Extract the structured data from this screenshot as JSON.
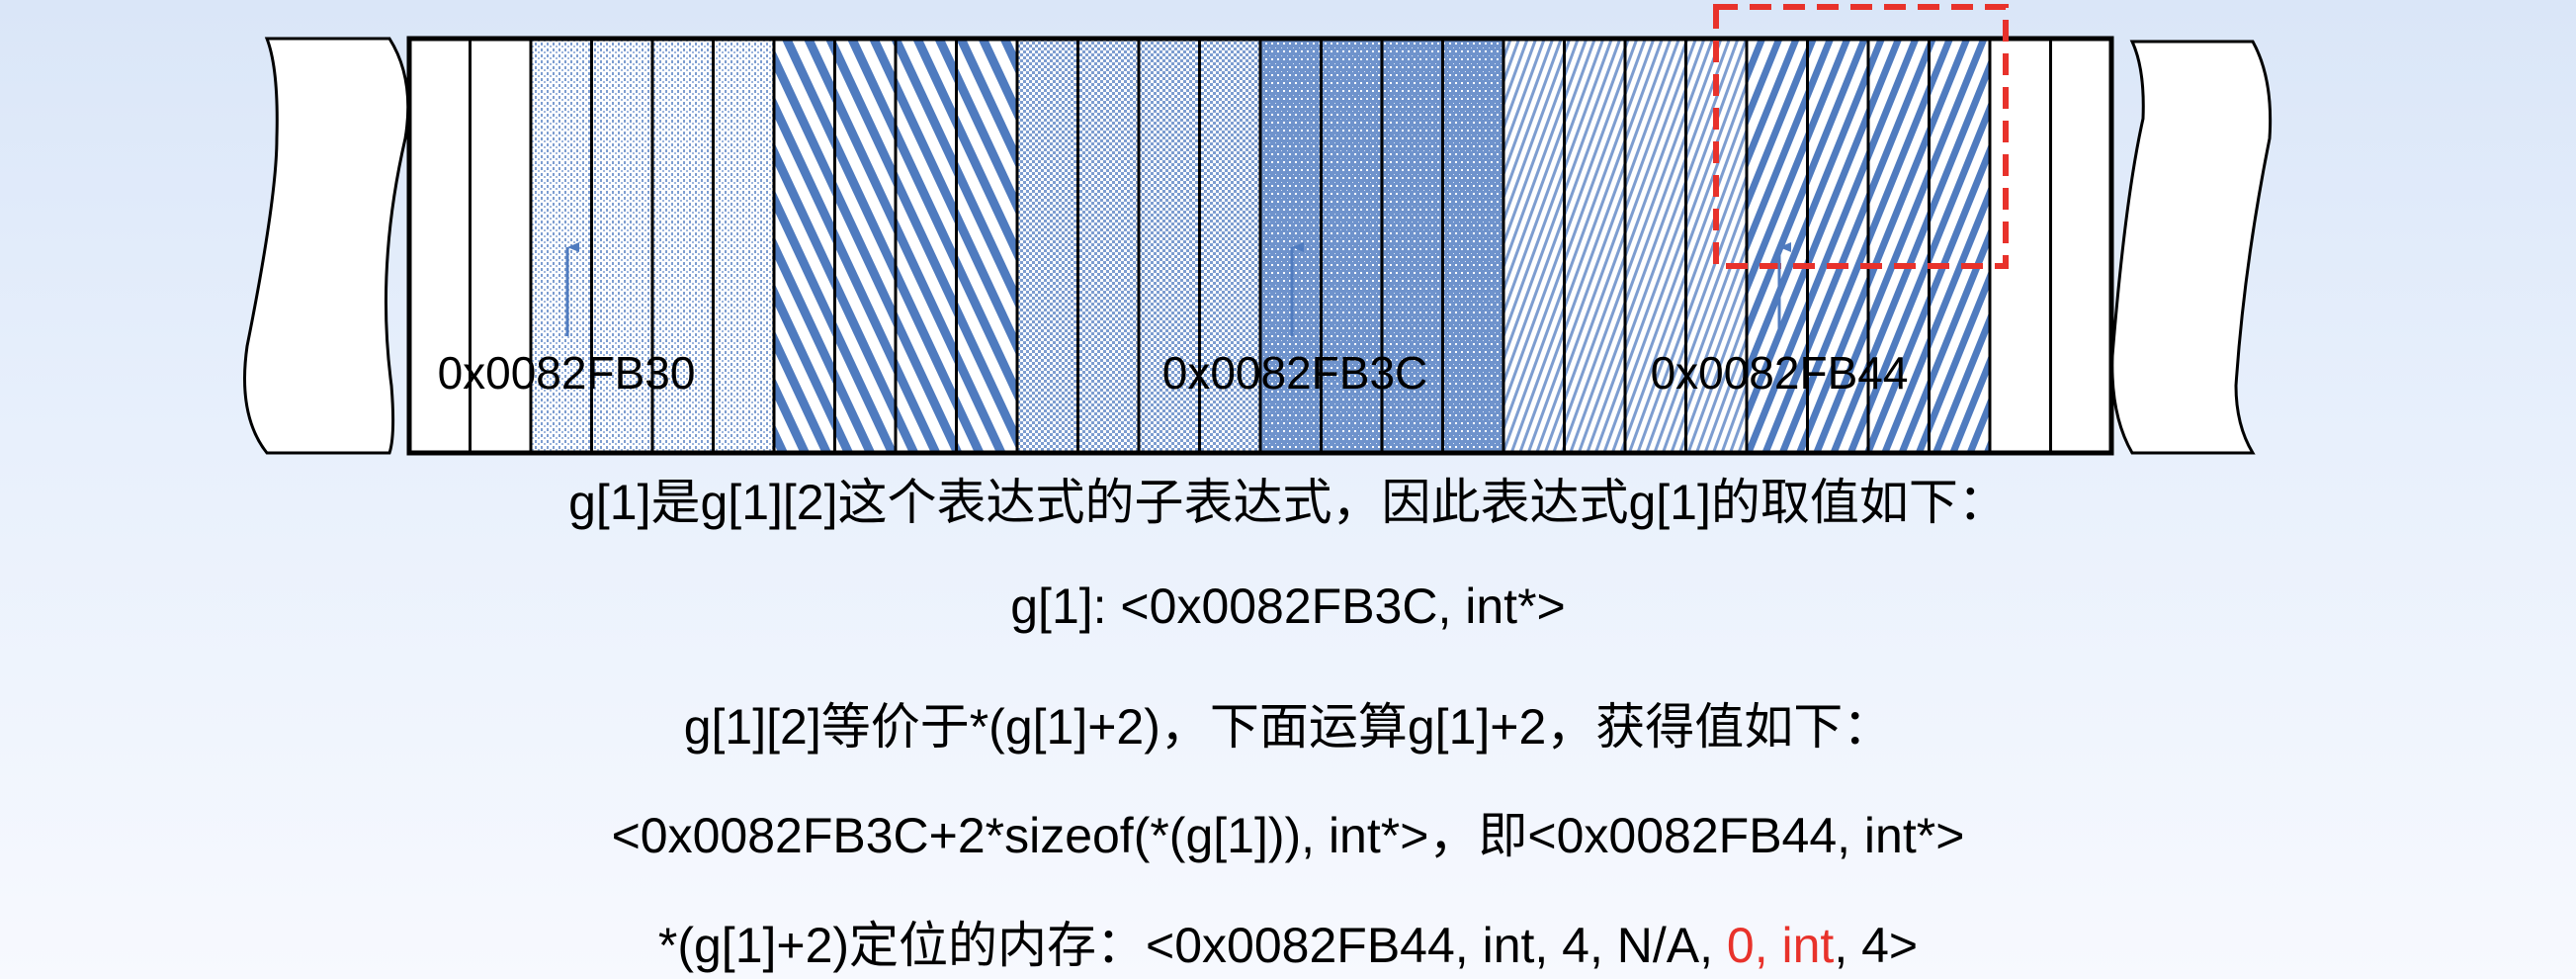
{
  "memory": {
    "cell_groups": [
      {
        "pattern": "white",
        "count": 2
      },
      {
        "pattern": "fine-dots",
        "count": 4
      },
      {
        "pattern": "back-diagonal-wide",
        "count": 4
      },
      {
        "pattern": "light-cross-dots",
        "count": 4
      },
      {
        "pattern": "dense-cross-dots",
        "count": 4
      },
      {
        "pattern": "fine-forward-diagonal",
        "count": 4
      },
      {
        "pattern": "bold-forward-diagonal",
        "count": 4
      },
      {
        "pattern": "white",
        "count": 2
      }
    ],
    "highlight_color": "#e8322b",
    "pattern_color": "#4f7bbf",
    "arrow_color": "#4f7bbf"
  },
  "addresses": [
    "0x0082FB30",
    "0x0082FB3C",
    "0x0082FB44"
  ],
  "lines": [
    "g[1]是g[1][2]这个表达式的子表达式，因此表达式g[1]的取值如下：",
    "g[1]: <0x0082FB3C, int*>",
    "g[1][2]等价于*(g[1]+2)，下面运算g[1]+2，获得值如下：",
    "<0x0082FB3C+2*sizeof(*(g[1])), int*>，即<0x0082FB44, int*>"
  ],
  "last_line": {
    "prefix": "*(g[1]+2)定位的内存：<0x0082FB44, int, 4, N/A, ",
    "highlight": "0, int",
    "suffix": ", 4>"
  }
}
